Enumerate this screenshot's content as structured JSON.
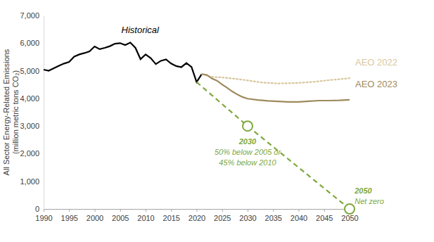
{
  "chart_data": {
    "type": "line",
    "ylabel": [
      "All Sector Energy-Related Emissions",
      "(million metric tons CO₂)"
    ],
    "xlim": [
      1990,
      2050
    ],
    "xticks": [
      1990,
      1995,
      2000,
      2005,
      2010,
      2015,
      2020,
      2025,
      2030,
      2035,
      2040,
      2045,
      2050
    ],
    "ylim": [
      0,
      7000
    ],
    "yticks": [
      0,
      {
        "value": 1000,
        "label": "1,000"
      },
      {
        "value": 2000,
        "label": "2,000"
      },
      {
        "value": 3000,
        "label": "3,000"
      },
      {
        "value": 4000,
        "label": "4,000"
      },
      {
        "value": 5000,
        "label": "5,000"
      },
      {
        "value": 6000,
        "label": "6,000"
      },
      {
        "value": 7000,
        "label": "7,000"
      }
    ],
    "grid": false,
    "series": [
      {
        "name": "Historical",
        "color": "#000000",
        "line_style": "solid",
        "x": [
          1990,
          1991,
          1992,
          1993,
          1994,
          1995,
          1996,
          1997,
          1998,
          1999,
          2000,
          2001,
          2002,
          2003,
          2004,
          2005,
          2006,
          2007,
          2008,
          2009,
          2010,
          2011,
          2012,
          2013,
          2014,
          2015,
          2016,
          2017,
          2018,
          2019,
          2020,
          2021
        ],
        "values": [
          5040,
          5000,
          5090,
          5180,
          5260,
          5320,
          5510,
          5590,
          5640,
          5700,
          5880,
          5780,
          5830,
          5890,
          5980,
          6000,
          5930,
          6020,
          5830,
          5420,
          5590,
          5460,
          5240,
          5360,
          5410,
          5260,
          5170,
          5130,
          5280,
          5140,
          4590,
          4880
        ]
      },
      {
        "name": "AEO 2022",
        "color": "#d8c79d",
        "line_style": "dotted",
        "x": [
          2021,
          2022,
          2023,
          2025,
          2028,
          2030,
          2033,
          2036,
          2040,
          2043,
          2046,
          2050
        ],
        "values": [
          4880,
          4820,
          4780,
          4760,
          4700,
          4650,
          4570,
          4540,
          4560,
          4600,
          4660,
          4730
        ]
      },
      {
        "name": "AEO 2023",
        "color": "#9e8a5c",
        "line_style": "solid",
        "x": [
          2021,
          2022,
          2023,
          2024,
          2025,
          2026,
          2027,
          2028,
          2029,
          2030,
          2032,
          2034,
          2036,
          2038,
          2040,
          2042,
          2044,
          2046,
          2048,
          2050
        ],
        "values": [
          4880,
          4850,
          4720,
          4640,
          4500,
          4380,
          4250,
          4140,
          4050,
          3990,
          3940,
          3910,
          3890,
          3870,
          3870,
          3900,
          3920,
          3920,
          3930,
          3950
        ]
      },
      {
        "color": "#7ea83c",
        "line_style": "dashed",
        "x": [
          2020,
          2030,
          2050
        ],
        "values": [
          4590,
          3000,
          0
        ]
      },
      {
        "type": "scatter",
        "color": "#7ea83c",
        "marker": "circle",
        "x": [
          2030,
          2050
        ],
        "values": [
          3000,
          0
        ]
      }
    ],
    "annotations": [
      {
        "x": 2030,
        "y": 2340,
        "color": "#7ea83c",
        "lines": [
          "2030",
          "50% below 2005 or",
          "45% below 2010"
        ]
      },
      {
        "x": 2051,
        "y": 560,
        "color": "#7ea83c",
        "lines": [
          "2050",
          "Net zero"
        ]
      }
    ]
  }
}
